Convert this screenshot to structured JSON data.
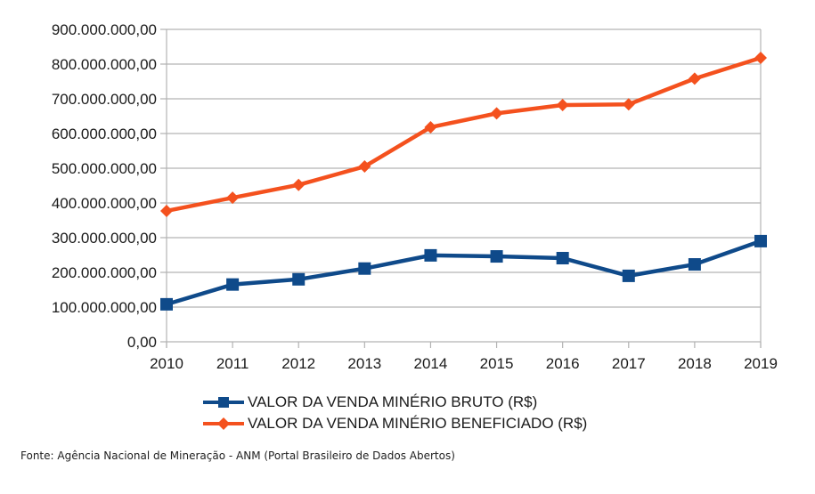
{
  "chart_data": {
    "type": "line",
    "title": "",
    "xlabel": "",
    "ylabel": "",
    "categories": [
      "2010",
      "2011",
      "2012",
      "2013",
      "2014",
      "2015",
      "2016",
      "2017",
      "2018",
      "2019"
    ],
    "ylim": [
      0,
      900000000
    ],
    "yticks": [
      0,
      100000000,
      200000000,
      300000000,
      400000000,
      500000000,
      600000000,
      700000000,
      800000000,
      900000000
    ],
    "ytick_labels": [
      "0,00",
      "100.000.000,00",
      "200.000.000,00",
      "300.000.000,00",
      "400.000.000,00",
      "500.000.000,00",
      "600.000.000,00",
      "700.000.000,00",
      "800.000.000,00",
      "900.000.000,00"
    ],
    "grid": true,
    "legend_position": "bottom",
    "series": [
      {
        "name": "VALOR DA VENDA MINÉRIO BRUTO (R$)",
        "color": "#0f4a8a",
        "marker": "square",
        "values": [
          108000000,
          165000000,
          180000000,
          211000000,
          249000000,
          246000000,
          241000000,
          190000000,
          223000000,
          290000000
        ]
      },
      {
        "name": "VALOR DA VENDA MINÉRIO BENEFICIADO (R$)",
        "color": "#f4511e",
        "marker": "diamond",
        "values": [
          377000000,
          415000000,
          452000000,
          505000000,
          618000000,
          658000000,
          682000000,
          684000000,
          758000000,
          818000000
        ]
      }
    ]
  },
  "source": {
    "text": "Fonte: Agência Nacional de Mineração - ANM (Portal Brasileiro de Dados Abertos)"
  }
}
